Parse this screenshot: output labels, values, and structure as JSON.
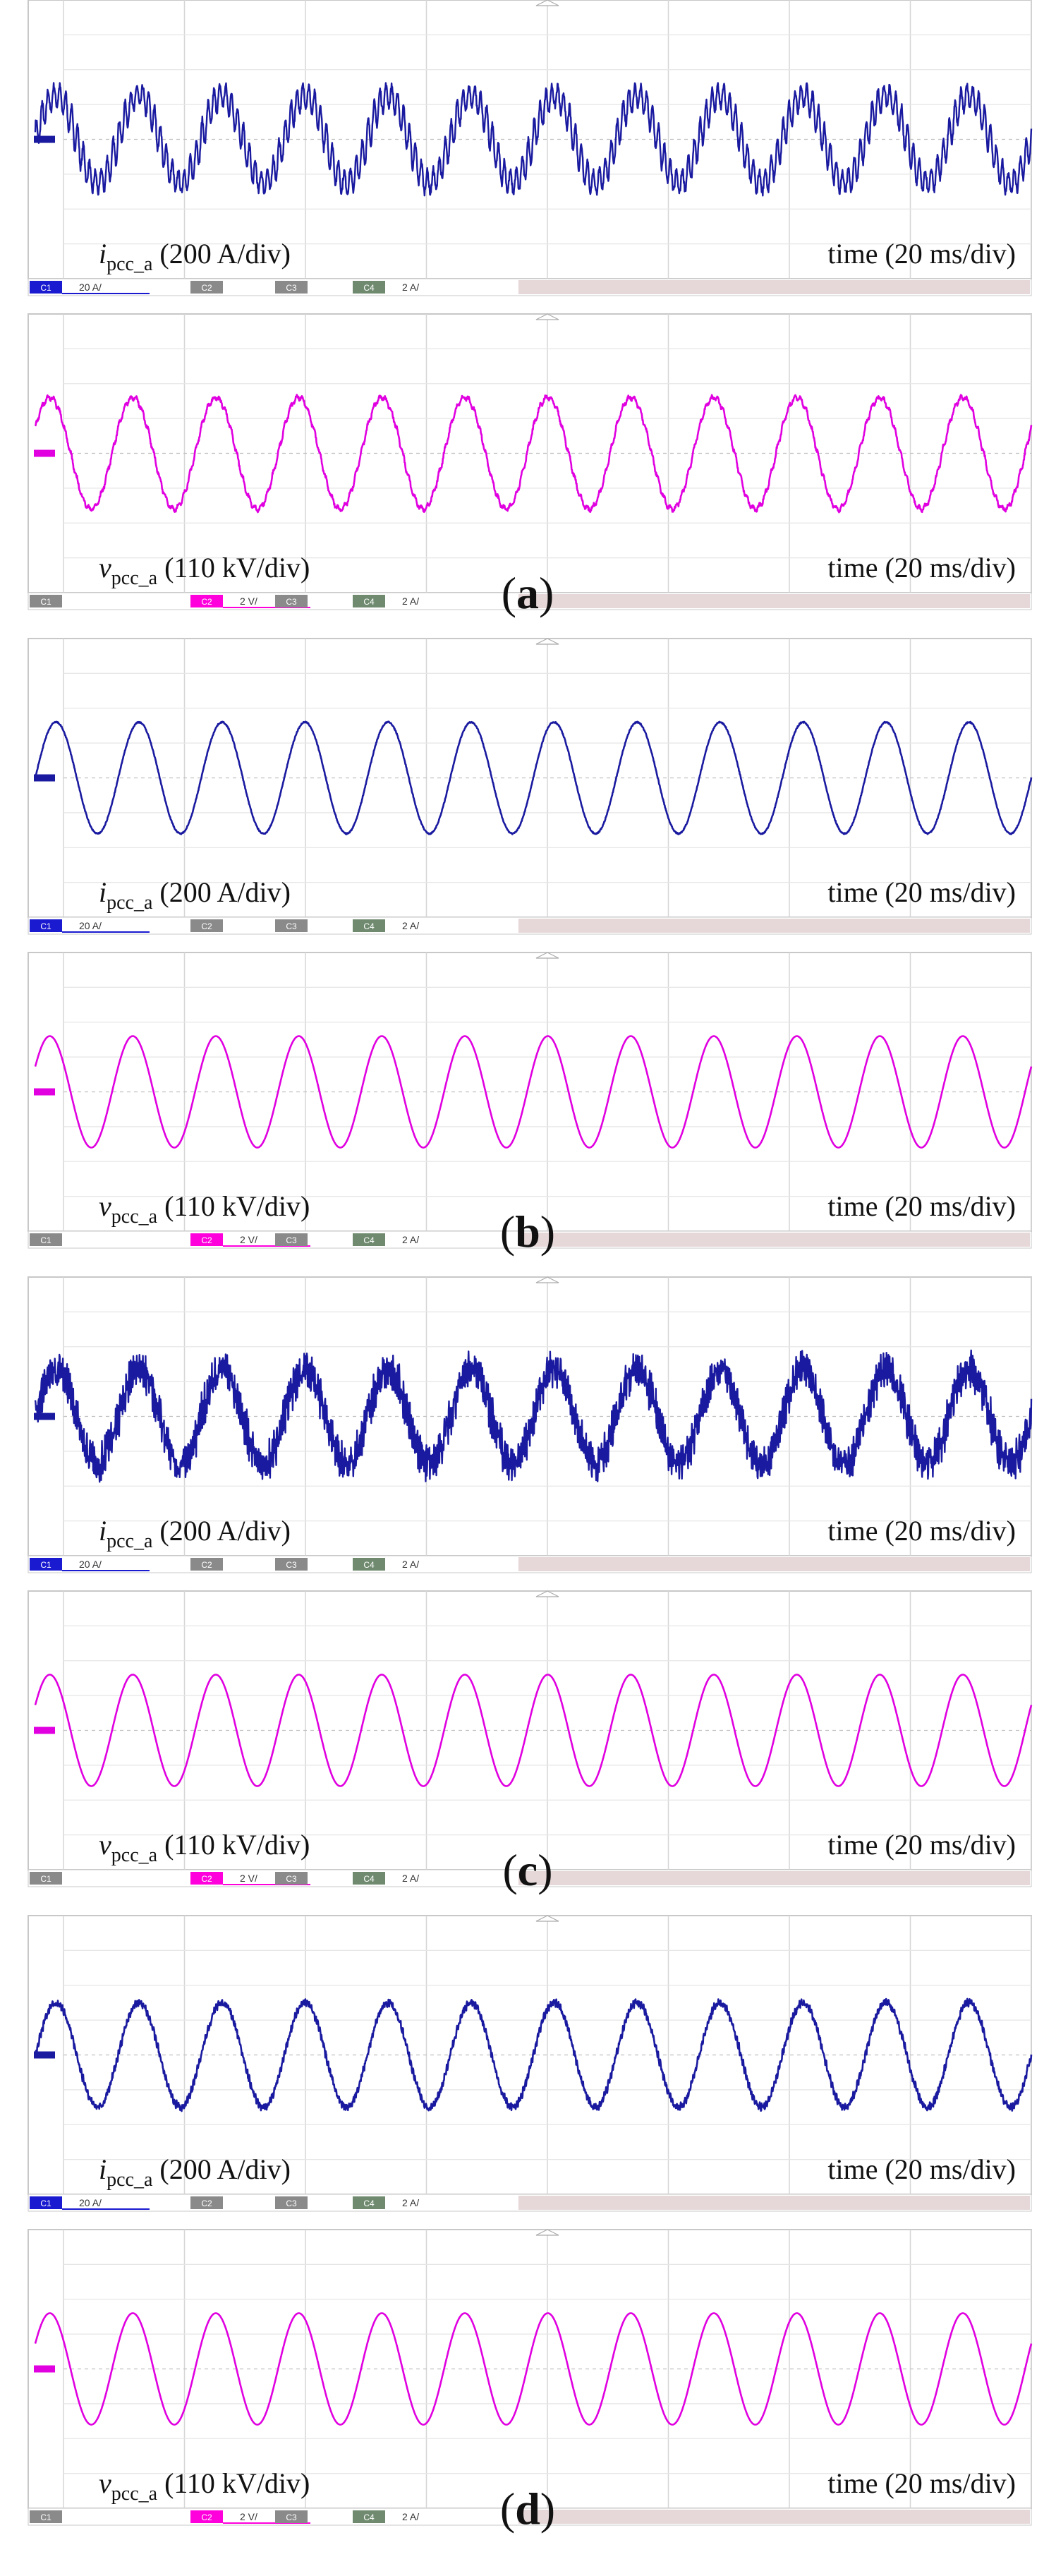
{
  "figure": {
    "panels": [
      {
        "letter": "a",
        "current_quality": "distorted",
        "voltage_quality": "slightly_distorted"
      },
      {
        "letter": "b",
        "current_quality": "clean",
        "voltage_quality": "clean"
      },
      {
        "letter": "c",
        "current_quality": "heavy_noise",
        "voltage_quality": "clean"
      },
      {
        "letter": "d",
        "current_quality": "slight_noise",
        "voltage_quality": "clean"
      }
    ]
  },
  "chart_data": [
    {
      "type": "line",
      "panel": "a",
      "series": [
        {
          "var": "i",
          "sub": "pcc_a",
          "scale": "(200 A/div)",
          "time_label": "time (20 ms/div)",
          "color": "#1a1aa0",
          "channel": "C1",
          "cycles": 12,
          "amplitude_div": 1.25,
          "legend": [
            {
              "ch": "C1",
              "sel": true,
              "scale": "20 A/"
            },
            {
              "ch": "C2"
            },
            {
              "ch": "C3"
            },
            {
              "ch": "C4",
              "scale": "2 A/"
            }
          ]
        },
        {
          "var": "v",
          "sub": "pcc_a",
          "scale": "(110 kV/div)",
          "time_label": "time (20 ms/div)",
          "color": "#e000e0",
          "channel": "C2",
          "cycles": 12,
          "amplitude_div": 1.6,
          "legend": [
            {
              "ch": "C1"
            },
            {
              "ch": "C2",
              "sel": true,
              "scale": "2 V/"
            },
            {
              "ch": "C3"
            },
            {
              "ch": "C4",
              "scale": "2 A/"
            }
          ]
        }
      ]
    },
    {
      "type": "line",
      "panel": "b",
      "series": [
        {
          "var": "i",
          "sub": "pcc_a",
          "scale": "(200 A/div)",
          "time_label": "time (20 ms/div)",
          "color": "#1a1aa0",
          "channel": "C1",
          "cycles": 12,
          "amplitude_div": 1.6,
          "legend": [
            {
              "ch": "C1",
              "sel": true,
              "scale": "20 A/"
            },
            {
              "ch": "C2"
            },
            {
              "ch": "C3"
            },
            {
              "ch": "C4",
              "scale": "2 A/"
            }
          ]
        },
        {
          "var": "v",
          "sub": "pcc_a",
          "scale": "(110 kV/div)",
          "time_label": "time (20 ms/div)",
          "color": "#e000e0",
          "channel": "C2",
          "cycles": 12,
          "amplitude_div": 1.6,
          "legend": [
            {
              "ch": "C1"
            },
            {
              "ch": "C2",
              "sel": true,
              "scale": "2 V/"
            },
            {
              "ch": "C3"
            },
            {
              "ch": "C4",
              "scale": "2 A/"
            }
          ]
        }
      ]
    },
    {
      "type": "line",
      "panel": "c",
      "series": [
        {
          "var": "i",
          "sub": "pcc_a",
          "scale": "(200 A/div)",
          "time_label": "time (20 ms/div)",
          "color": "#1a1aa0",
          "channel": "C1",
          "cycles": 12,
          "amplitude_div": 1.35,
          "legend": [
            {
              "ch": "C1",
              "sel": true,
              "scale": "20 A/"
            },
            {
              "ch": "C2"
            },
            {
              "ch": "C3"
            },
            {
              "ch": "C4",
              "scale": "2 A/"
            }
          ]
        },
        {
          "var": "v",
          "sub": "pcc_a",
          "scale": "(110 kV/div)",
          "time_label": "time (20 ms/div)",
          "color": "#e000e0",
          "channel": "C2",
          "cycles": 12,
          "amplitude_div": 1.6,
          "legend": [
            {
              "ch": "C1"
            },
            {
              "ch": "C2",
              "sel": true,
              "scale": "2 V/"
            },
            {
              "ch": "C3"
            },
            {
              "ch": "C4",
              "scale": "2 A/"
            }
          ]
        }
      ]
    },
    {
      "type": "line",
      "panel": "d",
      "series": [
        {
          "var": "i",
          "sub": "pcc_a",
          "scale": "(200 A/div)",
          "time_label": "time (20 ms/div)",
          "color": "#1a1aa0",
          "channel": "C1",
          "cycles": 12,
          "amplitude_div": 1.5,
          "legend": [
            {
              "ch": "C1",
              "sel": true,
              "scale": "20 A/"
            },
            {
              "ch": "C2"
            },
            {
              "ch": "C3"
            },
            {
              "ch": "C4",
              "scale": "2 A/"
            }
          ]
        },
        {
          "var": "v",
          "sub": "pcc_a",
          "scale": "(110 kV/div)",
          "time_label": "time (20 ms/div)",
          "color": "#e000e0",
          "channel": "C2",
          "cycles": 12,
          "amplitude_div": 1.6,
          "legend": [
            {
              "ch": "C1"
            },
            {
              "ch": "C2",
              "sel": true,
              "scale": "2 V/"
            },
            {
              "ch": "C3"
            },
            {
              "ch": "C4",
              "scale": "2 A/"
            }
          ]
        }
      ]
    }
  ]
}
